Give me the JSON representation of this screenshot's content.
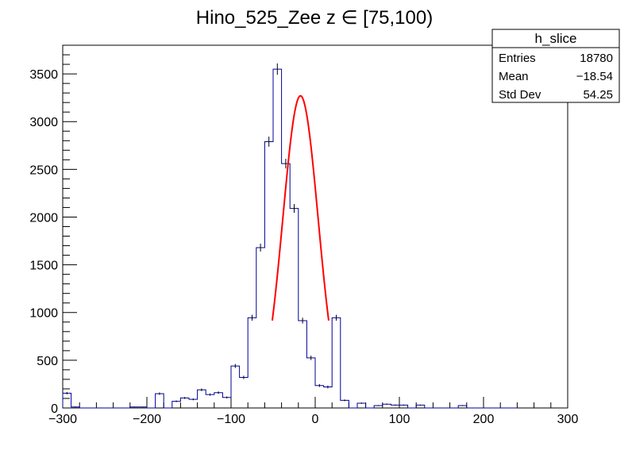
{
  "chart_data": {
    "type": "bar",
    "title": "Hino_525_Zee z  ∈ [75,100)",
    "xlabel": "",
    "ylabel": "",
    "xlim": [
      -300,
      300
    ],
    "ylim": [
      0,
      3800
    ],
    "bin_width": 10,
    "x_ticks": [
      "−300",
      "−200",
      "−100",
      "0",
      "100",
      "200",
      "300"
    ],
    "x_tick_values": [
      -300,
      -200,
      -100,
      0,
      100,
      200,
      300
    ],
    "y_ticks": [
      "0",
      "500",
      "1000",
      "1500",
      "2000",
      "2500",
      "3000",
      "3500"
    ],
    "y_tick_values": [
      0,
      500,
      1000,
      1500,
      2000,
      2500,
      3000,
      3500
    ],
    "histogram_color": "#000099",
    "fit_color": "#ff0000",
    "grid": false,
    "bins": [
      {
        "x": -300,
        "count": 155
      },
      {
        "x": -290,
        "count": 10
      },
      {
        "x": -280,
        "count": 0
      },
      {
        "x": -270,
        "count": 0
      },
      {
        "x": -260,
        "count": 0
      },
      {
        "x": -250,
        "count": 0
      },
      {
        "x": -240,
        "count": 0
      },
      {
        "x": -230,
        "count": 0
      },
      {
        "x": -220,
        "count": 10
      },
      {
        "x": -210,
        "count": 10
      },
      {
        "x": -200,
        "count": 0
      },
      {
        "x": -190,
        "count": 150
      },
      {
        "x": -180,
        "count": 0
      },
      {
        "x": -170,
        "count": 70
      },
      {
        "x": -160,
        "count": 105
      },
      {
        "x": -150,
        "count": 90
      },
      {
        "x": -140,
        "count": 190
      },
      {
        "x": -130,
        "count": 140
      },
      {
        "x": -120,
        "count": 160
      },
      {
        "x": -110,
        "count": 110
      },
      {
        "x": -100,
        "count": 440
      },
      {
        "x": -90,
        "count": 320
      },
      {
        "x": -80,
        "count": 945
      },
      {
        "x": -70,
        "count": 1680
      },
      {
        "x": -60,
        "count": 2790
      },
      {
        "x": -50,
        "count": 3550
      },
      {
        "x": -40,
        "count": 2560
      },
      {
        "x": -30,
        "count": 2090
      },
      {
        "x": -20,
        "count": 915
      },
      {
        "x": -10,
        "count": 525
      },
      {
        "x": 0,
        "count": 235
      },
      {
        "x": 10,
        "count": 220
      },
      {
        "x": 20,
        "count": 945
      },
      {
        "x": 30,
        "count": 80
      },
      {
        "x": 40,
        "count": 0
      },
      {
        "x": 50,
        "count": 50
      },
      {
        "x": 60,
        "count": 0
      },
      {
        "x": 70,
        "count": 25
      },
      {
        "x": 80,
        "count": 40
      },
      {
        "x": 90,
        "count": 30
      },
      {
        "x": 100,
        "count": 30
      },
      {
        "x": 110,
        "count": 0
      },
      {
        "x": 120,
        "count": 30
      },
      {
        "x": 130,
        "count": 0
      },
      {
        "x": 140,
        "count": 0
      },
      {
        "x": 150,
        "count": 0
      },
      {
        "x": 160,
        "count": 0
      },
      {
        "x": 170,
        "count": 25
      },
      {
        "x": 180,
        "count": 0
      },
      {
        "x": 190,
        "count": 0
      },
      {
        "x": 200,
        "count": 0
      },
      {
        "x": 210,
        "count": 0
      },
      {
        "x": 220,
        "count": 0
      },
      {
        "x": 230,
        "count": 0
      }
    ],
    "fit": {
      "function": "gaus",
      "amplitude": 3270,
      "mean": -17.5,
      "sigma": 21,
      "range": [
        -51,
        16
      ]
    },
    "stats_box": {
      "title": "h_slice",
      "rows": [
        {
          "label": "Entries",
          "value": "18780"
        },
        {
          "label": "Mean",
          "value": "−18.54"
        },
        {
          "label": "Std Dev",
          "value": "54.25"
        }
      ]
    }
  }
}
